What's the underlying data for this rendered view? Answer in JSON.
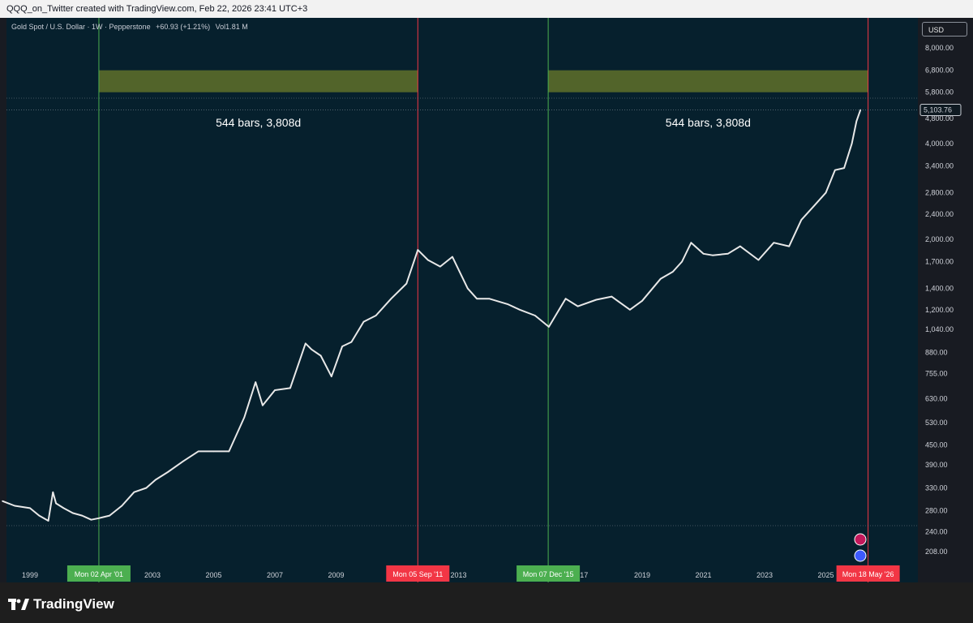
{
  "header": {
    "title": "QQQ_on_Twitter created with TradingView.com, Feb 22, 2026 23:41 UTC+3"
  },
  "legend": {
    "symbol": "Gold Spot / U.S. Dollar · 1W · Pepperstone",
    "change": "+60.93 (+1.21%)",
    "volume": "Vol1.81 M"
  },
  "currency": "USD",
  "colors": {
    "background": "#06202d",
    "price_line": "#e8e8e8",
    "green_line": "#4caf50",
    "red_line": "#f23645",
    "zone": "#5b6b2a",
    "date_green": "#4caf50",
    "date_red": "#f23645"
  },
  "chart_data": {
    "type": "line",
    "title": "Gold Spot / U.S. Dollar · 1W · Pepperstone",
    "log_scale": true,
    "grid": false,
    "y_ticks": [
      "8,000.00",
      "6,800.00",
      "5,800.00",
      "4,800.00",
      "4,000.00",
      "3,400.00",
      "2,800.00",
      "2,400.00",
      "2,000.00",
      "1,700.00",
      "1,400.00",
      "1,200.00",
      "1,040.00",
      "880.00",
      "755.00",
      "630.00",
      "530.00",
      "450.00",
      "390.00",
      "330.00",
      "280.00",
      "240.00",
      "208.00"
    ],
    "y_tick_values": [
      8000,
      6800,
      5800,
      4800,
      4000,
      3400,
      2800,
      2400,
      2000,
      1700,
      1400,
      1200,
      1040,
      880,
      755,
      630,
      530,
      450,
      390,
      330,
      280,
      240,
      208
    ],
    "x_ticks": [
      "1999",
      "2003",
      "2005",
      "2007",
      "2009",
      "2013",
      "20",
      "17",
      "2019",
      "2021",
      "2023",
      "2025"
    ],
    "x_tick_years": [
      1999,
      2003,
      2005,
      2007,
      2009,
      2013,
      2015.85,
      2017.1,
      2019,
      2021,
      2023,
      2025
    ],
    "last_price": "5,103.76",
    "last_price_value": 5103.76,
    "series": [
      {
        "x": [
          1998.1,
          1998.5,
          1999.0,
          1999.3,
          1999.6,
          1999.75,
          1999.85,
          2000.1,
          2000.4,
          2000.7,
          2001.0,
          2001.25,
          2001.6,
          2002.0,
          2002.4,
          2002.8,
          2003.1,
          2003.5,
          2004.0,
          2004.5,
          2005.0,
          2005.5,
          2006.0,
          2006.37,
          2006.6,
          2007.0,
          2007.5,
          2008.0,
          2008.2,
          2008.5,
          2008.85,
          2009.2,
          2009.5,
          2009.9,
          2010.3,
          2010.8,
          2011.3,
          2011.67,
          2012.0,
          2012.4,
          2012.8,
          2013.3,
          2013.6,
          2014.0,
          2014.6,
          2015.0,
          2015.5,
          2015.95,
          2016.5,
          2016.9,
          2017.5,
          2018.0,
          2018.6,
          2019.0,
          2019.6,
          2020.0,
          2020.3,
          2020.6,
          2021.0,
          2021.3,
          2021.8,
          2022.2,
          2022.8,
          2023.3,
          2023.8,
          2024.2,
          2024.7,
          2025.0,
          2025.3,
          2025.6,
          2025.85,
          2026.0,
          2026.13
        ],
        "y": [
          300,
          290,
          285,
          270,
          260,
          320,
          295,
          285,
          275,
          270,
          262,
          265,
          270,
          290,
          320,
          330,
          350,
          370,
          400,
          430,
          430,
          430,
          550,
          710,
          600,
          670,
          680,
          940,
          900,
          860,
          740,
          920,
          950,
          1100,
          1150,
          1300,
          1450,
          1850,
          1720,
          1640,
          1760,
          1400,
          1300,
          1300,
          1250,
          1200,
          1150,
          1060,
          1300,
          1230,
          1290,
          1320,
          1200,
          1280,
          1500,
          1580,
          1700,
          1950,
          1800,
          1780,
          1800,
          1900,
          1720,
          1950,
          1900,
          2300,
          2600,
          2800,
          3300,
          3350,
          4000,
          4700,
          5103.76
        ]
      }
    ],
    "annotations": [
      {
        "text": "544 bars, 3,808d",
        "start_label": "Mon 02 Apr '01",
        "end_label": "Mon 05 Sep '11",
        "start": 2001.25,
        "end": 2011.67,
        "zone_low": 5800,
        "zone_high": 6800
      },
      {
        "text": "544 bars, 3,808d",
        "start_label": "Mon 07 Dec '15",
        "end_label": "Mon 18 May '26",
        "start": 2015.93,
        "end": 2026.38,
        "zone_low": 5800,
        "zone_high": 6800
      }
    ]
  },
  "footer": {
    "brand": "TradingView"
  }
}
